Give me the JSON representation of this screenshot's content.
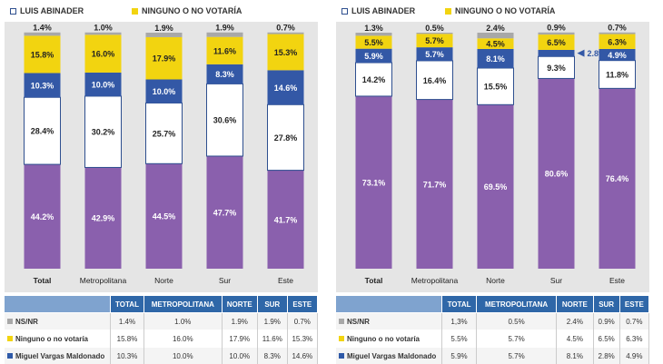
{
  "colors": {
    "nsnr": "#a8a8a8",
    "ninguno": "#f2d410",
    "miguel": "#3358a6",
    "luis": "#ffffff",
    "abel": "#8a60ad",
    "grid": "#e5e5e5",
    "header": "#2f67a8"
  },
  "legend": {
    "luis": "LUIS ABINADER",
    "ninguno": "NINGUNO O NO VOTARÍA"
  },
  "table": {
    "headers": [
      "TOTAL",
      "METROPOLITANA",
      "NORTE",
      "SUR",
      "ESTE"
    ],
    "left_rows": [
      {
        "label": "NS/NR",
        "swatch": "gray",
        "values": [
          "1.4%",
          "1.0%",
          "1.9%",
          "1.9%",
          "0.7%"
        ]
      },
      {
        "label": "Ninguno o no votaría",
        "swatch": "yellow",
        "values": [
          "15.8%",
          "16.0%",
          "17.9%",
          "11.6%",
          "15.3%"
        ]
      },
      {
        "label": "Miguel Vargas Maldonado",
        "swatch": "blue",
        "values": [
          "10.3%",
          "10.0%",
          "10.0%",
          "8.3%",
          "14.6%"
        ]
      }
    ],
    "right_rows": [
      {
        "label": "NS/NR",
        "swatch": "gray",
        "values": [
          "1,3%",
          "0.5%",
          "2.4%",
          "0.9%",
          "0.7%"
        ]
      },
      {
        "label": "Ninguno o no votaría",
        "swatch": "yellow",
        "values": [
          "5.5%",
          "5.7%",
          "4.5%",
          "6.5%",
          "6.3%"
        ]
      },
      {
        "label": "Miguel Vargas Maldonado",
        "swatch": "blue",
        "values": [
          "5.9%",
          "5.7%",
          "8.1%",
          "2.8%",
          "4.9%"
        ]
      }
    ]
  },
  "chart_data": [
    {
      "type": "bar",
      "stacked": true,
      "categories": [
        "Total",
        "Metropolitana",
        "Norte",
        "Sur",
        "Este"
      ],
      "series": [
        {
          "key": "abel",
          "values": [
            44.2,
            42.9,
            44.5,
            47.7,
            41.7
          ],
          "labels": [
            "44.2%",
            "42.9%",
            "44.5%",
            "47.7%",
            "41.7%"
          ]
        },
        {
          "key": "luis",
          "name": "LUIS ABINADER",
          "values": [
            28.4,
            30.2,
            25.7,
            30.6,
            27.8
          ],
          "labels": [
            "28.4%",
            "30.2%",
            "25.7%",
            "30.6%",
            "27.8%"
          ]
        },
        {
          "key": "miguel",
          "values": [
            10.3,
            10.0,
            10.0,
            8.3,
            14.6
          ],
          "labels": [
            "10.3%",
            "10.0%",
            "10.0%",
            "8.3%",
            "14.6%"
          ]
        },
        {
          "key": "ninguno",
          "name": "NINGUNO O NO VOTARÍA",
          "values": [
            15.8,
            16.0,
            17.9,
            11.6,
            15.3
          ],
          "labels": [
            "15.8%",
            "16.0%",
            "17.9%",
            "11.6%",
            "15.3%"
          ]
        },
        {
          "key": "nsnr",
          "values": [
            1.4,
            1.0,
            1.9,
            1.9,
            0.7
          ],
          "labels": [
            "1.4%",
            "1.0%",
            "1.9%",
            "1.9%",
            "0.7%"
          ]
        }
      ],
      "ylim": [
        0,
        100
      ]
    },
    {
      "type": "bar",
      "stacked": true,
      "categories": [
        "Total",
        "Metropolitana",
        "Norte",
        "Sur",
        "Este"
      ],
      "series": [
        {
          "key": "abel",
          "values": [
            73.1,
            71.7,
            69.5,
            80.6,
            76.4
          ],
          "labels": [
            "73.1%",
            "71.7%",
            "69.5%",
            "80.6%",
            "76.4%"
          ]
        },
        {
          "key": "luis",
          "name": "LUIS ABINADER",
          "values": [
            14.2,
            16.4,
            15.5,
            9.3,
            11.8
          ],
          "labels": [
            "14.2%",
            "16.4%",
            "15.5%",
            "9.3%",
            "11.8%"
          ]
        },
        {
          "key": "miguel",
          "values": [
            5.9,
            5.7,
            8.1,
            2.8,
            4.9
          ],
          "labels": [
            "5.9%",
            "5.7%",
            "8.1%",
            "2.8%",
            "4.9%"
          ]
        },
        {
          "key": "ninguno",
          "name": "NINGUNO O NO VOTARÍA",
          "values": [
            5.5,
            5.7,
            4.5,
            6.5,
            6.3
          ],
          "labels": [
            "5.5%",
            "5.7%",
            "4.5%",
            "6.5%",
            "6.3%"
          ]
        },
        {
          "key": "nsnr",
          "values": [
            1.3,
            0.5,
            2.4,
            0.9,
            0.7
          ],
          "labels": [
            "1.3%",
            "0.5%",
            "2.4%",
            "0.9%",
            "0.7%"
          ]
        }
      ],
      "ylim": [
        0,
        100
      ]
    }
  ]
}
